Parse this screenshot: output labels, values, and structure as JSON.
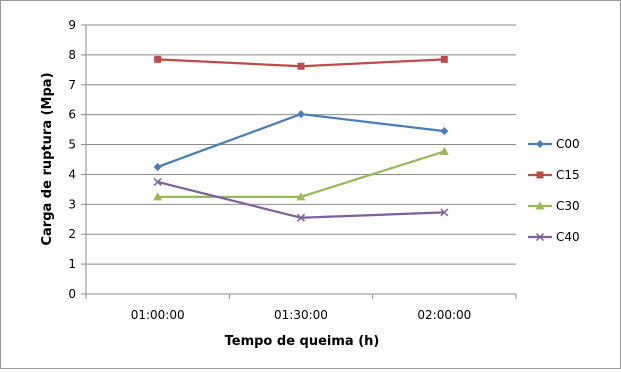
{
  "chart_data": {
    "type": "line",
    "title": "",
    "xlabel": "Tempo de queima (h)",
    "ylabel": "Carga de ruptura (Mpa)",
    "categories": [
      "01:00:00",
      "01:30:00",
      "02:00:00"
    ],
    "ylim": [
      0,
      9
    ],
    "yticks": [
      "0",
      "1",
      "2",
      "3",
      "4",
      "5",
      "6",
      "7",
      "8",
      "9"
    ],
    "grid": true,
    "legend_position": "right",
    "series": [
      {
        "name": "C00",
        "values": [
          4.25,
          6.02,
          5.45
        ],
        "color": "#4a7ebb",
        "marker": "diamond"
      },
      {
        "name": "C15",
        "values": [
          7.85,
          7.62,
          7.85
        ],
        "color": "#be4b48",
        "marker": "square"
      },
      {
        "name": "C30",
        "values": [
          3.25,
          3.25,
          4.77
        ],
        "color": "#98b954",
        "marker": "triangle"
      },
      {
        "name": "C40",
        "values": [
          3.75,
          2.55,
          2.73
        ],
        "color": "#7d60a0",
        "marker": "x"
      }
    ]
  }
}
